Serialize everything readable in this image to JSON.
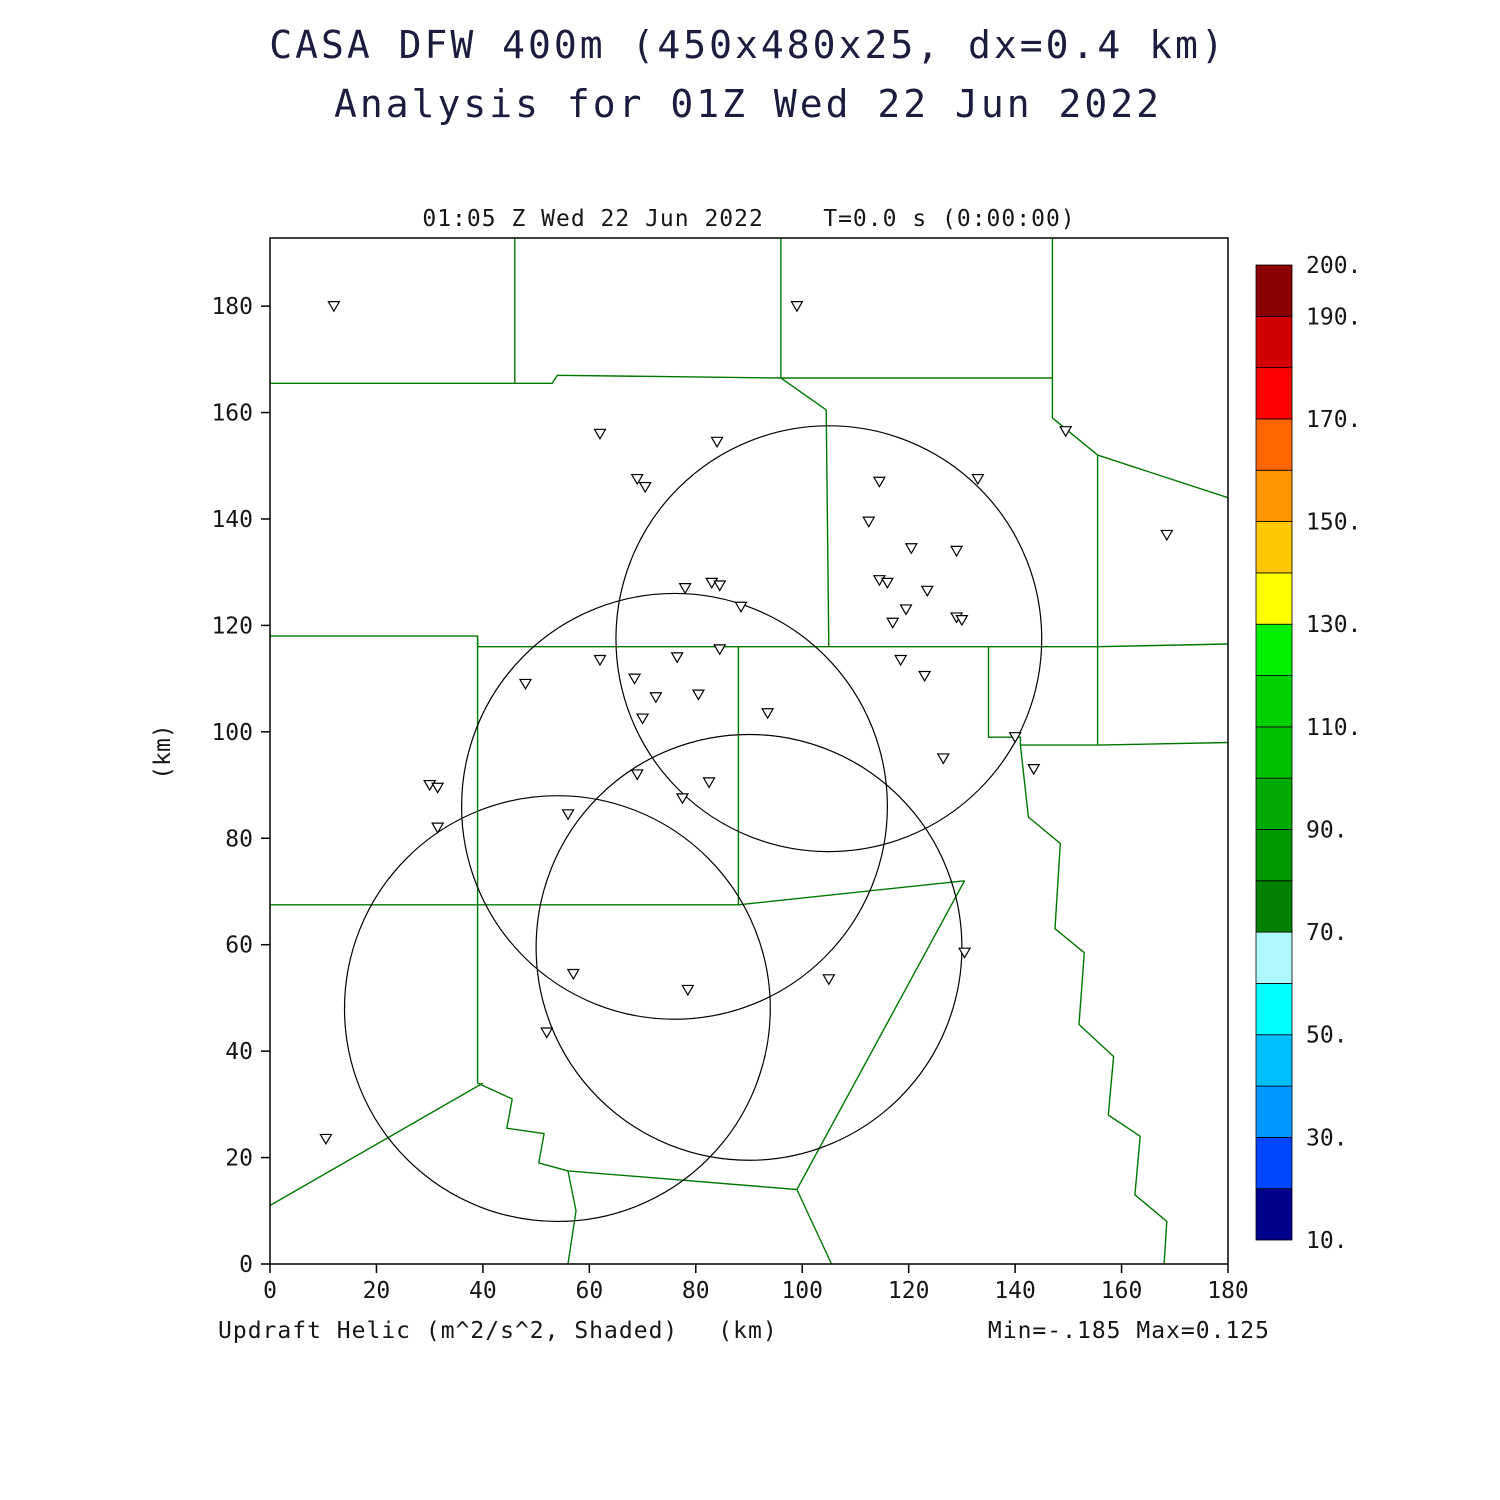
{
  "header": {
    "title_line1": "CASA DFW 400m (450x480x25, dx=0.4 km)",
    "title_line2": "Analysis for 01Z Wed 22 Jun 2022"
  },
  "plot": {
    "time_header": "01:05 Z Wed 22 Jun 2022    T=0.0 s (0:00:00)",
    "x_axis_label": "(km)",
    "y_axis_label": "(km)"
  },
  "footer": {
    "variable_label": "Updraft Helic (m^2/s^2, Shaded)",
    "minmax_label": "Min=-.185 Max=0.125"
  },
  "chart_data": {
    "type": "scatter",
    "title": "01:05 Z Wed 22 Jun 2022  T=0.0 s (0:00:00)",
    "subtitle": "CASA DFW 400m (450x480x25, dx=0.4 km) Analysis for 01Z Wed 22 Jun 2022",
    "xlabel": "(km)",
    "ylabel": "(km)",
    "field": {
      "name": "Updraft Helic",
      "units": "m^2/s^2",
      "style": "Shaded",
      "min": -0.185,
      "max": 0.125
    },
    "x_range": [
      0,
      180
    ],
    "y_range": [
      0,
      192.8
    ],
    "x_ticks": [
      0,
      20,
      40,
      60,
      80,
      100,
      120,
      140,
      160,
      180
    ],
    "y_ticks": [
      0,
      20,
      40,
      60,
      80,
      100,
      120,
      140,
      160,
      180
    ],
    "grid": false,
    "legend_position": "colorbar-right",
    "colors": {
      "county_line": "#007800",
      "frame": "#000000",
      "background": "#ffffff"
    },
    "radar_sites_km": [
      [
        12,
        180
      ],
      [
        99,
        180
      ],
      [
        62,
        156
      ],
      [
        84,
        154.5
      ],
      [
        149.5,
        156.5
      ],
      [
        69,
        147.5
      ],
      [
        70.5,
        146
      ],
      [
        114.5,
        147
      ],
      [
        133,
        147.5
      ],
      [
        112.5,
        139.5
      ],
      [
        168.5,
        137
      ],
      [
        120.5,
        134.5
      ],
      [
        129,
        134
      ],
      [
        114.5,
        128.5
      ],
      [
        116,
        128
      ],
      [
        123.5,
        126.5
      ],
      [
        78,
        127
      ],
      [
        83,
        128
      ],
      [
        84.5,
        127.5
      ],
      [
        88.5,
        123.5
      ],
      [
        119.5,
        123
      ],
      [
        129,
        121.5
      ],
      [
        117,
        120.5
      ],
      [
        130,
        121
      ],
      [
        84.5,
        115.5
      ],
      [
        62,
        113.5
      ],
      [
        76.5,
        114
      ],
      [
        118.5,
        113.5
      ],
      [
        48,
        109
      ],
      [
        68.5,
        110
      ],
      [
        123,
        110.5
      ],
      [
        72.5,
        106.5
      ],
      [
        80.5,
        107
      ],
      [
        70,
        102.5
      ],
      [
        93.5,
        103.5
      ],
      [
        140,
        99
      ],
      [
        126.5,
        95
      ],
      [
        30,
        90
      ],
      [
        31.5,
        89.5
      ],
      [
        69,
        92
      ],
      [
        82.5,
        90.5
      ],
      [
        143.5,
        93
      ],
      [
        77.5,
        87.5
      ],
      [
        31.5,
        82
      ],
      [
        56,
        84.5
      ],
      [
        57,
        54.5
      ],
      [
        130.5,
        58.5
      ],
      [
        105,
        53.5
      ],
      [
        78.5,
        51.5
      ],
      [
        52,
        43.5
      ],
      [
        10.5,
        23.5
      ]
    ],
    "range_circles_km": [
      {
        "cx": 105,
        "cy": 117.5,
        "r": 40
      },
      {
        "cx": 76,
        "cy": 86,
        "r": 40
      },
      {
        "cx": 54,
        "cy": 48,
        "r": 40
      },
      {
        "cx": 90,
        "cy": 59.5,
        "r": 40
      }
    ],
    "county_lines_km": [
      [
        [
          46,
          192.8
        ],
        [
          46,
          165.5
        ]
      ],
      [
        [
          0,
          165.5
        ],
        [
          53,
          165.5
        ],
        [
          54,
          167
        ],
        [
          96,
          166.5
        ]
      ],
      [
        [
          96,
          192.8
        ],
        [
          96,
          166.5
        ]
      ],
      [
        [
          96,
          166.5
        ],
        [
          147,
          166.5
        ]
      ],
      [
        [
          96,
          166.5
        ],
        [
          104.5,
          160.5
        ],
        [
          105,
          116
        ]
      ],
      [
        [
          147,
          192.8
        ],
        [
          147,
          159
        ],
        [
          155.5,
          152
        ],
        [
          155.5,
          97.5
        ]
      ],
      [
        [
          155.5,
          152
        ],
        [
          180,
          144
        ]
      ],
      [
        [
          0,
          118
        ],
        [
          39,
          118
        ],
        [
          39,
          116
        ],
        [
          155.5,
          116
        ]
      ],
      [
        [
          155.5,
          116
        ],
        [
          180,
          116.5
        ]
      ],
      [
        [
          39,
          118
        ],
        [
          39,
          34
        ]
      ],
      [
        [
          0,
          67.5
        ],
        [
          88,
          67.5
        ]
      ],
      [
        [
          88,
          116
        ],
        [
          88,
          67.5
        ]
      ],
      [
        [
          88,
          67.5
        ],
        [
          130.5,
          72
        ]
      ],
      [
        [
          135,
          116
        ],
        [
          135,
          99
        ],
        [
          141,
          99
        ],
        [
          141,
          97.5
        ],
        [
          155.5,
          97.5
        ]
      ],
      [
        [
          155.5,
          97.5
        ],
        [
          180,
          98
        ]
      ],
      [
        [
          130.5,
          72
        ],
        [
          99,
          14
        ],
        [
          105.5,
          0
        ]
      ],
      [
        [
          141,
          97.5
        ],
        [
          142.5,
          84
        ],
        [
          148.5,
          79
        ],
        [
          147.5,
          63
        ],
        [
          153,
          58.5
        ],
        [
          152,
          45
        ],
        [
          158.5,
          39
        ],
        [
          157.5,
          28
        ],
        [
          163.5,
          24
        ],
        [
          162.5,
          13
        ],
        [
          168.5,
          8
        ],
        [
          168,
          0
        ]
      ],
      [
        [
          0,
          11
        ],
        [
          40,
          34
        ]
      ],
      [
        [
          39,
          34
        ],
        [
          45.5,
          31
        ],
        [
          44.5,
          25.5
        ],
        [
          51.5,
          24.5
        ],
        [
          50.5,
          19
        ],
        [
          56,
          17.5
        ]
      ],
      [
        [
          56,
          17.5
        ],
        [
          99,
          14
        ]
      ],
      [
        [
          56,
          17.5
        ],
        [
          57.5,
          10
        ],
        [
          56,
          0
        ]
      ]
    ],
    "colorbar": {
      "min_value": 10,
      "max_value": 200,
      "step": 10,
      "levels_labels": [
        "200.",
        "190.",
        "170.",
        "150.",
        "130.",
        "110.",
        "90.",
        "70.",
        "50.",
        "30.",
        "10."
      ],
      "label_values": [
        200,
        190,
        170,
        150,
        130,
        110,
        90,
        70,
        50,
        30,
        10
      ],
      "colors_bottom_to_top": [
        "#00008B",
        "#0045FF",
        "#0096FF",
        "#00BFFF",
        "#00FFFF",
        "#AFF8FF",
        "#008200",
        "#009600",
        "#00AA00",
        "#00BE00",
        "#00D200",
        "#00F000",
        "#FFFF00",
        "#FFC800",
        "#FF9600",
        "#FF6400",
        "#FF0000",
        "#D20000",
        "#8B0000"
      ]
    }
  }
}
